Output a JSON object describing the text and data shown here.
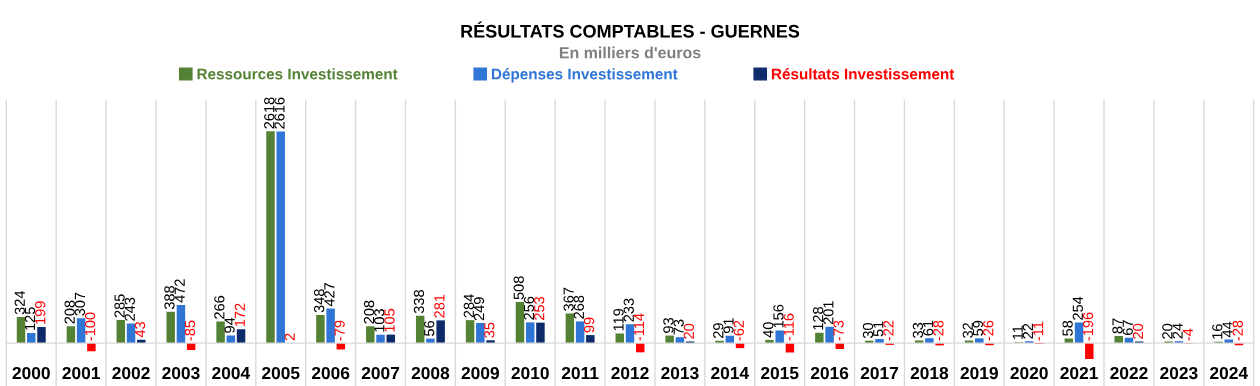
{
  "chart_data": {
    "type": "bar",
    "title": "RÉSULTATS COMPTABLES - GUERNES",
    "subtitle": "En milliers d'euros",
    "categories": [
      "2000",
      "2001",
      "2002",
      "2003",
      "2004",
      "2005",
      "2006",
      "2007",
      "2008",
      "2009",
      "2010",
      "2011",
      "2012",
      "2013",
      "2014",
      "2015",
      "2016",
      "2017",
      "2018",
      "2019",
      "2020",
      "2021",
      "2022",
      "2023",
      "2024"
    ],
    "series": [
      {
        "name": "Ressources Investissement",
        "color": "#548235",
        "values": [
          324,
          208,
          285,
          388,
          266,
          2618,
          348,
          208,
          338,
          284,
          508,
          367,
          119,
          93,
          29,
          40,
          128,
          30,
          33,
          32,
          11,
          58,
          87,
          20,
          16
        ]
      },
      {
        "name": "Dépenses Investissement",
        "color": "#2e75d6",
        "values": [
          125,
          307,
          243,
          472,
          94,
          2616,
          427,
          103,
          56,
          249,
          256,
          268,
          233,
          73,
          91,
          156,
          201,
          51,
          61,
          59,
          22,
          254,
          67,
          24,
          44
        ]
      },
      {
        "name": "Résultats Investissement",
        "color": "#0d2a6b",
        "colors": [
          "#0d2a6b",
          "#ff0000",
          "#0d2a6b",
          "#ff0000",
          "#0d2a6b",
          "#0d2a6b",
          "#ff0000",
          "#0d2a6b",
          "#0d2a6b",
          "#0d2a6b",
          "#0d2a6b",
          "#0d2a6b",
          "#ff0000",
          "#0d2a6b",
          "#ff0000",
          "#ff0000",
          "#ff0000",
          "#ff0000",
          "#ff0000",
          "#ff0000",
          "#ff0000",
          "#ff0000",
          "#0d2a6b",
          "#ff0000",
          "#ff0000"
        ],
        "values": [
          199,
          -100,
          43,
          -85,
          172,
          2,
          -79,
          105,
          281,
          35,
          253,
          99,
          -114,
          20,
          -62,
          -116,
          -73,
          -22,
          -28,
          -26,
          -11,
          -196,
          20,
          -4,
          -28
        ]
      }
    ],
    "ylim": [
      -220,
      3000
    ],
    "data_labels": true,
    "grid": "x",
    "legend": "top",
    "tick_labels": "x"
  }
}
